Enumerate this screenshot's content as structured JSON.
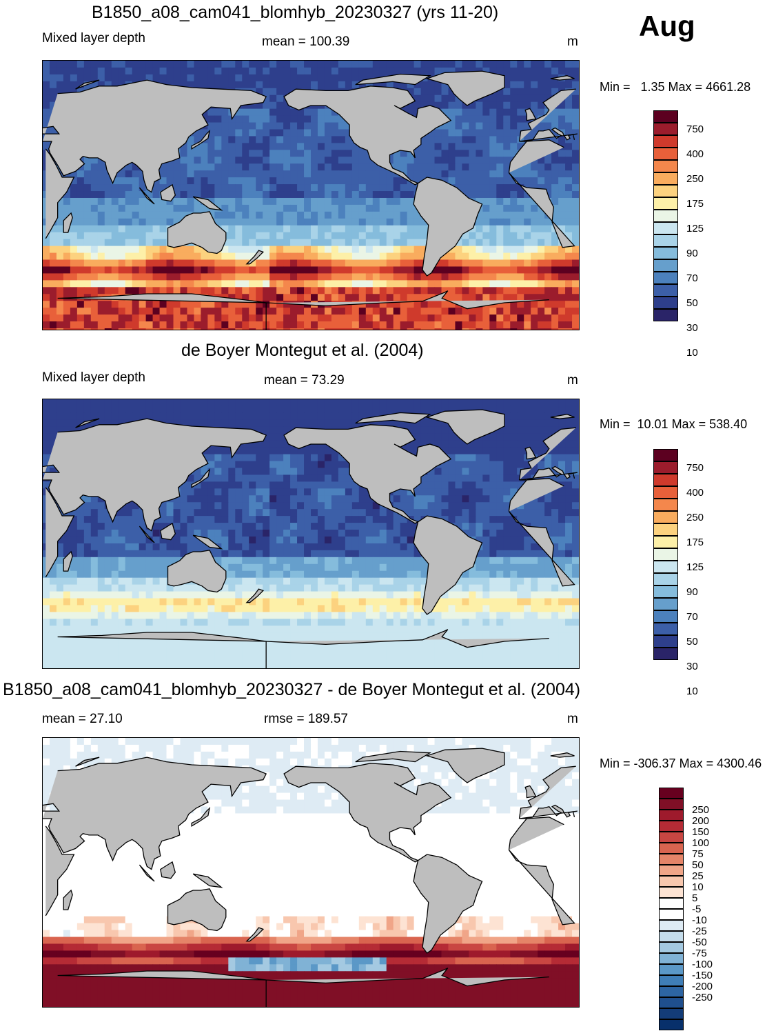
{
  "month": "Aug",
  "panels": [
    {
      "title": "B1850_a08_cam041_blomhyb_20230327 (yrs 11-20)",
      "left_label": "Mixed layer depth",
      "center_label": "mean = 100.39",
      "unit": "m",
      "minmax": "Min =   1.35 Max = 4661.28",
      "colorbar": {
        "labels": [
          "750",
          "400",
          "250",
          "175",
          "125",
          "90",
          "70",
          "50",
          "30",
          "10"
        ],
        "colors": [
          "#5c0020",
          "#9b1c2c",
          "#cf3a2c",
          "#e8603a",
          "#f4874c",
          "#f9ac5e",
          "#fcd27f",
          "#fdf0a8",
          "#eaf5e6",
          "#cbe6f0",
          "#a9d3e8",
          "#85bcdc",
          "#669fcc",
          "#4c81bd",
          "#3c5fa8",
          "#2e3f8c",
          "#2a2468"
        ]
      }
    },
    {
      "title": "de Boyer Montegut et al. (2004)",
      "left_label": "Mixed layer depth",
      "center_label": "mean =  73.29",
      "unit": "m",
      "minmax": "Min =  10.01 Max = 538.40",
      "colorbar": {
        "labels": [
          "750",
          "400",
          "250",
          "175",
          "125",
          "90",
          "70",
          "50",
          "30",
          "10"
        ],
        "colors": [
          "#5c0020",
          "#9b1c2c",
          "#cf3a2c",
          "#e8603a",
          "#f4874c",
          "#f9ac5e",
          "#fcd27f",
          "#fdf0a8",
          "#eaf5e6",
          "#cbe6f0",
          "#a9d3e8",
          "#85bcdc",
          "#669fcc",
          "#4c81bd",
          "#3c5fa8",
          "#2e3f8c",
          "#2a2468"
        ]
      }
    },
    {
      "title": "B1850_a08_cam041_blomhyb_20230327 - de Boyer Montegut et al. (2004)",
      "left_label": "mean =  27.10",
      "center_label": "rmse = 189.57",
      "unit": "m",
      "minmax": "Min = -306.37 Max = 4300.46",
      "colorbar": {
        "labels": [
          "250",
          "200",
          "150",
          "100",
          "75",
          "50",
          "25",
          "10",
          "5",
          "-5",
          "-10",
          "-25",
          "-50",
          "-75",
          "-100",
          "-150",
          "-200",
          "-250"
        ],
        "colors": [
          "#67001f",
          "#800f26",
          "#9e1a2c",
          "#b52b35",
          "#c94642",
          "#d9644f",
          "#e58468",
          "#f0a588",
          "#f8c7ae",
          "#fde3d3",
          "#ffffff",
          "#ffffff",
          "#deebf4",
          "#c4dceb",
          "#a4c9e1",
          "#80b2d5",
          "#5b98c7",
          "#3f7eb7",
          "#2d65a3",
          "#1f4f8e",
          "#133c78",
          "#08306b"
        ]
      }
    }
  ],
  "chart_data": [
    {
      "type": "heatmap",
      "title": "B1850_a08_cam041_blomhyb_20230327 (yrs 11-20)",
      "variable": "Mixed layer depth",
      "units": "m",
      "mean": 100.39,
      "min": 1.35,
      "max": 4661.28,
      "contour_levels": [
        10,
        20,
        30,
        40,
        50,
        60,
        70,
        80,
        90,
        100,
        125,
        150,
        175,
        200,
        250,
        300,
        400,
        500,
        750
      ],
      "month": "Aug"
    },
    {
      "type": "heatmap",
      "title": "de Boyer Montegut et al. (2004)",
      "variable": "Mixed layer depth",
      "units": "m",
      "mean": 73.29,
      "min": 10.01,
      "max": 538.4,
      "contour_levels": [
        10,
        20,
        30,
        40,
        50,
        60,
        70,
        80,
        90,
        100,
        125,
        150,
        175,
        200,
        250,
        300,
        400,
        500,
        750
      ],
      "month": "Aug"
    },
    {
      "type": "heatmap",
      "title": "B1850_a08_cam041_blomhyb_20230327 - de Boyer Montegut et al. (2004)",
      "units": "m",
      "mean": 27.1,
      "rmse": 189.57,
      "min": -306.37,
      "max": 4300.46,
      "contour_levels": [
        -250,
        -200,
        -150,
        -100,
        -75,
        -50,
        -25,
        -10,
        -5,
        5,
        10,
        25,
        50,
        75,
        100,
        150,
        200,
        250
      ],
      "month": "Aug"
    }
  ]
}
